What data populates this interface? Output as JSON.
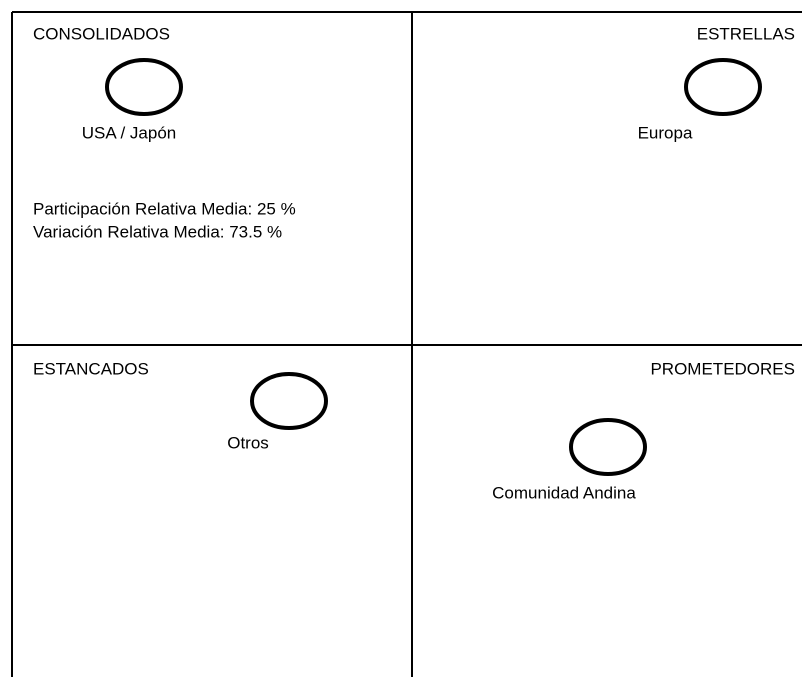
{
  "quadrants": [
    {
      "title": "CONSOLIDADOS",
      "nodes": [
        {
          "label": "USA / Japón"
        }
      ],
      "notes": [
        "Participación Relativa Media: 25 %",
        "Variación Relativa Media: 73.5 %"
      ]
    },
    {
      "title": "ESTRELLAS",
      "nodes": [
        {
          "label": "Europa"
        }
      ]
    },
    {
      "title": "ESTANCADOS",
      "nodes": [
        {
          "label": "Otros"
        }
      ]
    },
    {
      "title": "PROMETEDORES",
      "nodes": [
        {
          "label": "Comunidad Andina"
        }
      ]
    }
  ]
}
